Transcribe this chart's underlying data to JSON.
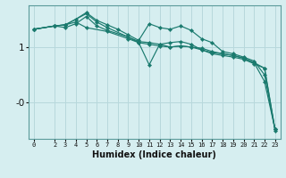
{
  "background_color": "#d6eef0",
  "line_color": "#1a7a6e",
  "grid_color": "#b8d8dc",
  "xlabel": "Humidex (Indice chaleur)",
  "ylabel_ticks": [
    "1",
    "-0"
  ],
  "ytick_vals": [
    1.0,
    0.0
  ],
  "xlim": [
    -0.5,
    23.5
  ],
  "ylim": [
    -0.65,
    1.75
  ],
  "xticks": [
    0,
    2,
    3,
    4,
    5,
    6,
    7,
    8,
    9,
    10,
    11,
    12,
    13,
    14,
    15,
    16,
    17,
    18,
    19,
    20,
    21,
    22,
    23
  ],
  "series": [
    {
      "x": [
        0,
        2,
        3,
        4,
        5,
        6,
        7,
        9,
        10,
        11,
        12,
        13,
        14,
        15,
        16,
        17,
        18,
        19,
        20,
        21,
        22,
        23
      ],
      "y": [
        1.32,
        1.38,
        1.35,
        1.42,
        1.55,
        1.38,
        1.3,
        1.18,
        1.1,
        1.08,
        1.05,
        1.0,
        1.02,
        1.0,
        0.98,
        0.92,
        0.88,
        0.85,
        0.8,
        0.72,
        0.62,
        -0.5
      ]
    },
    {
      "x": [
        0,
        2,
        3,
        4,
        5,
        6,
        7,
        8,
        9,
        10,
        11,
        12,
        13,
        14,
        15,
        16,
        17,
        18,
        19,
        20,
        21,
        22,
        23
      ],
      "y": [
        1.32,
        1.38,
        1.4,
        1.5,
        1.62,
        1.48,
        1.4,
        1.32,
        1.22,
        1.12,
        1.42,
        1.35,
        1.32,
        1.38,
        1.3,
        1.15,
        1.08,
        0.92,
        0.88,
        0.82,
        0.75,
        0.5,
        -0.48
      ]
    },
    {
      "x": [
        0,
        2,
        3,
        4,
        5,
        6,
        7,
        9,
        10,
        11,
        12,
        13,
        14,
        15,
        16,
        17,
        18,
        19,
        20,
        21,
        22,
        23
      ],
      "y": [
        1.32,
        1.38,
        1.4,
        1.5,
        1.6,
        1.45,
        1.35,
        1.18,
        1.08,
        0.68,
        1.05,
        1.08,
        1.1,
        1.05,
        0.95,
        0.9,
        0.88,
        0.85,
        0.8,
        0.72,
        0.38,
        -0.48
      ]
    },
    {
      "x": [
        0,
        2,
        3,
        4,
        5,
        7,
        9,
        10,
        11,
        12,
        13,
        14,
        15,
        16,
        17,
        18,
        19,
        20,
        21,
        22,
        23
      ],
      "y": [
        1.32,
        1.38,
        1.4,
        1.45,
        1.35,
        1.28,
        1.15,
        1.08,
        1.05,
        1.02,
        1.0,
        1.02,
        1.0,
        0.95,
        0.88,
        0.85,
        0.82,
        0.78,
        0.7,
        0.62,
        -0.48
      ]
    }
  ]
}
